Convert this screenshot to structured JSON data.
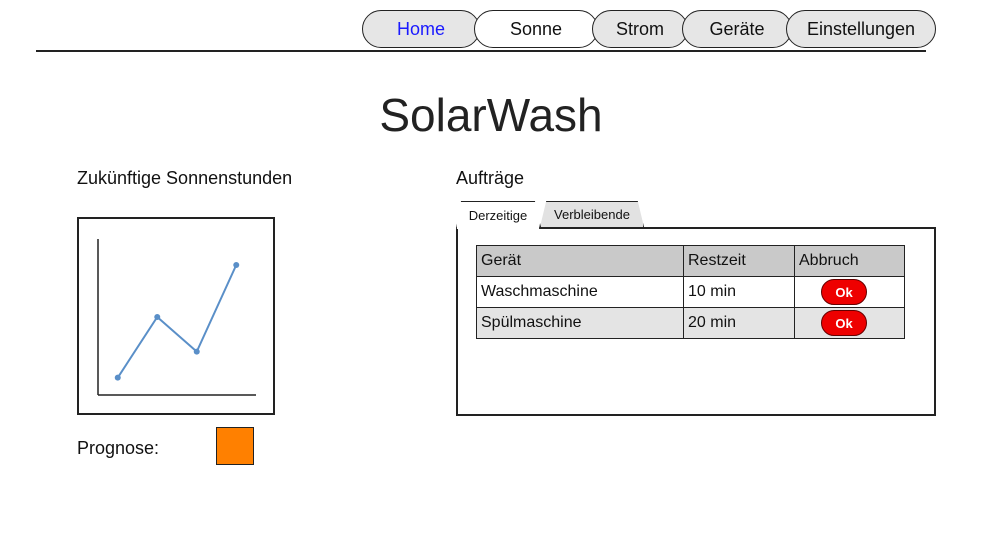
{
  "nav": {
    "items": [
      {
        "label": "Home",
        "active": true
      },
      {
        "label": "Sonne",
        "active": false
      },
      {
        "label": "Strom",
        "active": false
      },
      {
        "label": "Geräte",
        "active": false
      },
      {
        "label": "Einstellungen",
        "active": false
      }
    ]
  },
  "title": "SolarWash",
  "sun": {
    "heading": "Zukünftige Sonnenstunden",
    "prognose_label": "Prognose:",
    "prognose_color": "#ff8000"
  },
  "chart_data": {
    "type": "line",
    "title": "",
    "xlabel": "",
    "ylabel": "",
    "x": [
      1,
      2,
      3,
      4
    ],
    "values": [
      1,
      4.5,
      2.5,
      7.5
    ],
    "ylim": [
      0,
      9
    ],
    "xlim": [
      0.5,
      4.5
    ],
    "grid": false,
    "line_color": "#5a8fc8"
  },
  "orders": {
    "heading": "Aufträge",
    "tabs": [
      {
        "label": "Derzeitige",
        "active": true
      },
      {
        "label": "Verbleibende",
        "active": false
      }
    ],
    "columns": [
      "Gerät",
      "Restzeit",
      "Abbruch"
    ],
    "rows": [
      {
        "device": "Waschmaschine",
        "remaining": "10 min",
        "action": "Ok"
      },
      {
        "device": "Spülmaschine",
        "remaining": "20 min",
        "action": "Ok"
      }
    ]
  }
}
